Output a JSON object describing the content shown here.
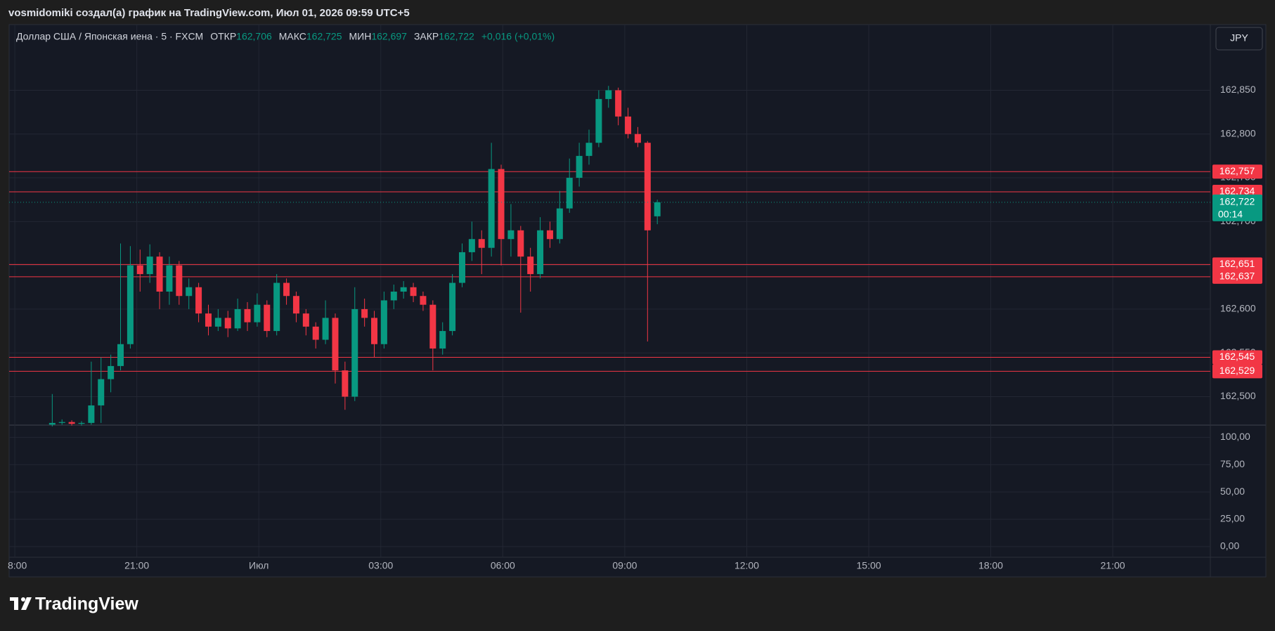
{
  "header": {
    "caption": "vosmidomiki создал(а) график на TradingView.com, Июл 01, 2026 09:59 UTC+5",
    "logo": "TradingView"
  },
  "legend": {
    "symbol": "Доллар США / Японская иена · 5 · FXCM",
    "items": [
      {
        "name": "ОТКР",
        "value": "162,706"
      },
      {
        "name": "МАКС",
        "value": "162,725"
      },
      {
        "name": "МИН",
        "value": "162,697"
      },
      {
        "name": "ЗАКР",
        "value": "162,722"
      }
    ],
    "change": "+0,016 (+0,01%)"
  },
  "currency_button": "JPY",
  "chart_data": {
    "type": "candlestick",
    "x": [
      18.92,
      19.16,
      19.4,
      19.64,
      19.88,
      20.12,
      20.36,
      20.6,
      20.84,
      21.08,
      21.32,
      21.56,
      21.8,
      22.04,
      22.28,
      22.52,
      22.76,
      23,
      23.24,
      23.48,
      23.72,
      23.96,
      24.2,
      24.44,
      24.68,
      24.92,
      25.16,
      25.4,
      25.64,
      25.88,
      26.12,
      26.36,
      26.6,
      26.84,
      27.08,
      27.32,
      27.56,
      27.8,
      28.04,
      28.28,
      28.52,
      28.76,
      29,
      29.24,
      29.48,
      29.72,
      29.96,
      30.2,
      30.44,
      30.68,
      30.92,
      31.16,
      31.4,
      31.64,
      31.88,
      32.12,
      32.36,
      32.6,
      32.84,
      33.08,
      33.32,
      33.56,
      33.8
    ],
    "open": [
      162.468,
      162.47,
      162.471,
      162.469,
      162.47,
      162.49,
      162.52,
      162.535,
      162.56,
      162.65,
      162.64,
      162.66,
      162.62,
      162.65,
      162.615,
      162.625,
      162.595,
      162.58,
      162.59,
      162.578,
      162.6,
      162.585,
      162.605,
      162.575,
      162.63,
      162.615,
      162.595,
      162.58,
      162.565,
      162.59,
      162.53,
      162.5,
      162.6,
      162.59,
      162.56,
      162.61,
      162.62,
      162.625,
      162.615,
      162.605,
      162.555,
      162.575,
      162.63,
      162.665,
      162.68,
      162.67,
      162.76,
      162.68,
      162.69,
      162.66,
      162.64,
      162.69,
      162.68,
      162.715,
      162.75,
      162.775,
      162.79,
      162.84,
      162.85,
      162.82,
      162.8,
      162.79,
      162.706
    ],
    "high": [
      162.503,
      162.474,
      162.473,
      162.472,
      162.54,
      162.545,
      162.548,
      162.675,
      162.672,
      162.668,
      162.674,
      162.665,
      162.66,
      162.655,
      162.635,
      162.63,
      162.605,
      162.6,
      162.598,
      162.612,
      162.608,
      162.618,
      162.61,
      162.64,
      162.635,
      162.62,
      162.6,
      162.585,
      162.61,
      162.595,
      162.54,
      162.625,
      162.612,
      162.598,
      162.62,
      162.628,
      162.632,
      162.63,
      162.62,
      162.61,
      162.585,
      162.64,
      162.675,
      162.7,
      162.69,
      162.79,
      162.765,
      162.72,
      162.695,
      162.67,
      162.705,
      162.7,
      162.735,
      162.772,
      162.79,
      162.805,
      162.85,
      162.855,
      162.853,
      162.83,
      162.808,
      162.792,
      162.725
    ],
    "low": [
      162.466,
      162.468,
      162.467,
      162.467,
      162.468,
      162.47,
      162.505,
      162.53,
      162.555,
      162.62,
      162.63,
      162.6,
      162.605,
      162.605,
      162.6,
      162.585,
      162.57,
      162.575,
      162.568,
      162.575,
      162.575,
      162.58,
      162.568,
      162.57,
      162.605,
      162.585,
      162.57,
      162.555,
      162.56,
      162.515,
      162.485,
      162.495,
      162.58,
      162.545,
      162.555,
      162.6,
      162.612,
      162.608,
      162.598,
      162.53,
      162.548,
      162.57,
      162.625,
      162.655,
      162.64,
      162.66,
      162.65,
      162.66,
      162.596,
      162.62,
      162.635,
      162.67,
      162.675,
      162.71,
      162.74,
      162.765,
      162.785,
      162.83,
      162.81,
      162.795,
      162.785,
      162.563,
      162.697
    ],
    "close": [
      162.47,
      162.471,
      162.469,
      162.47,
      162.49,
      162.52,
      162.535,
      162.56,
      162.65,
      162.64,
      162.66,
      162.62,
      162.65,
      162.615,
      162.625,
      162.595,
      162.58,
      162.59,
      162.578,
      162.6,
      162.585,
      162.605,
      162.575,
      162.63,
      162.615,
      162.595,
      162.58,
      162.565,
      162.59,
      162.53,
      162.5,
      162.6,
      162.59,
      162.56,
      162.61,
      162.62,
      162.625,
      162.615,
      162.605,
      162.555,
      162.575,
      162.63,
      162.665,
      162.68,
      162.67,
      162.76,
      162.68,
      162.69,
      162.66,
      162.64,
      162.69,
      162.68,
      162.715,
      162.75,
      162.775,
      162.79,
      162.84,
      162.85,
      162.82,
      162.8,
      162.79,
      162.69,
      162.722
    ],
    "up_color": "#089981",
    "down_color": "#f23645",
    "xlim": [
      17.86,
      47.4
    ],
    "xticks": [
      {
        "value": 18,
        "label": "8:00"
      },
      {
        "value": 21,
        "label": "21:00"
      },
      {
        "value": 24,
        "label": "Июл"
      },
      {
        "value": 27,
        "label": "03:00"
      },
      {
        "value": 30,
        "label": "06:00"
      },
      {
        "value": 33,
        "label": "09:00"
      },
      {
        "value": 36,
        "label": "12:00"
      },
      {
        "value": 39,
        "label": "15:00"
      },
      {
        "value": 42,
        "label": "18:00"
      },
      {
        "value": 45,
        "label": "21:00"
      }
    ],
    "ylim": [
      162.4675,
      162.925
    ],
    "yticks": [
      {
        "value": 162.5,
        "label": "162,500"
      },
      {
        "value": 162.55,
        "label": "162,550"
      },
      {
        "value": 162.6,
        "label": "162,600"
      },
      {
        "value": 162.65,
        "label": "162,650"
      },
      {
        "value": 162.7,
        "label": "162,700"
      },
      {
        "value": 162.75,
        "label": "162,750"
      },
      {
        "value": 162.8,
        "label": "162,800"
      },
      {
        "value": 162.85,
        "label": "162,850"
      }
    ],
    "grid": true,
    "hline_color": "#f23645",
    "hlines": [
      {
        "value": 162.757,
        "label": "162,757"
      },
      {
        "value": 162.734,
        "label": "162,734"
      },
      {
        "value": 162.651,
        "label": "162,651"
      },
      {
        "value": 162.637,
        "label": "162,637"
      },
      {
        "value": 162.545,
        "label": "162,545"
      },
      {
        "value": 162.529,
        "label": "162,529"
      }
    ],
    "last_price": {
      "value": 162.722,
      "label": "162,722",
      "countdown": "00:14"
    },
    "indicator_pane": {
      "ylim": [
        -9.7,
        111.2
      ],
      "yticks": [
        {
          "value": 0,
          "label": "0,00"
        },
        {
          "value": 25,
          "label": "25,00"
        },
        {
          "value": 50,
          "label": "50,00"
        },
        {
          "value": 75,
          "label": "75,00"
        },
        {
          "value": 100,
          "label": "100,00"
        }
      ]
    }
  }
}
